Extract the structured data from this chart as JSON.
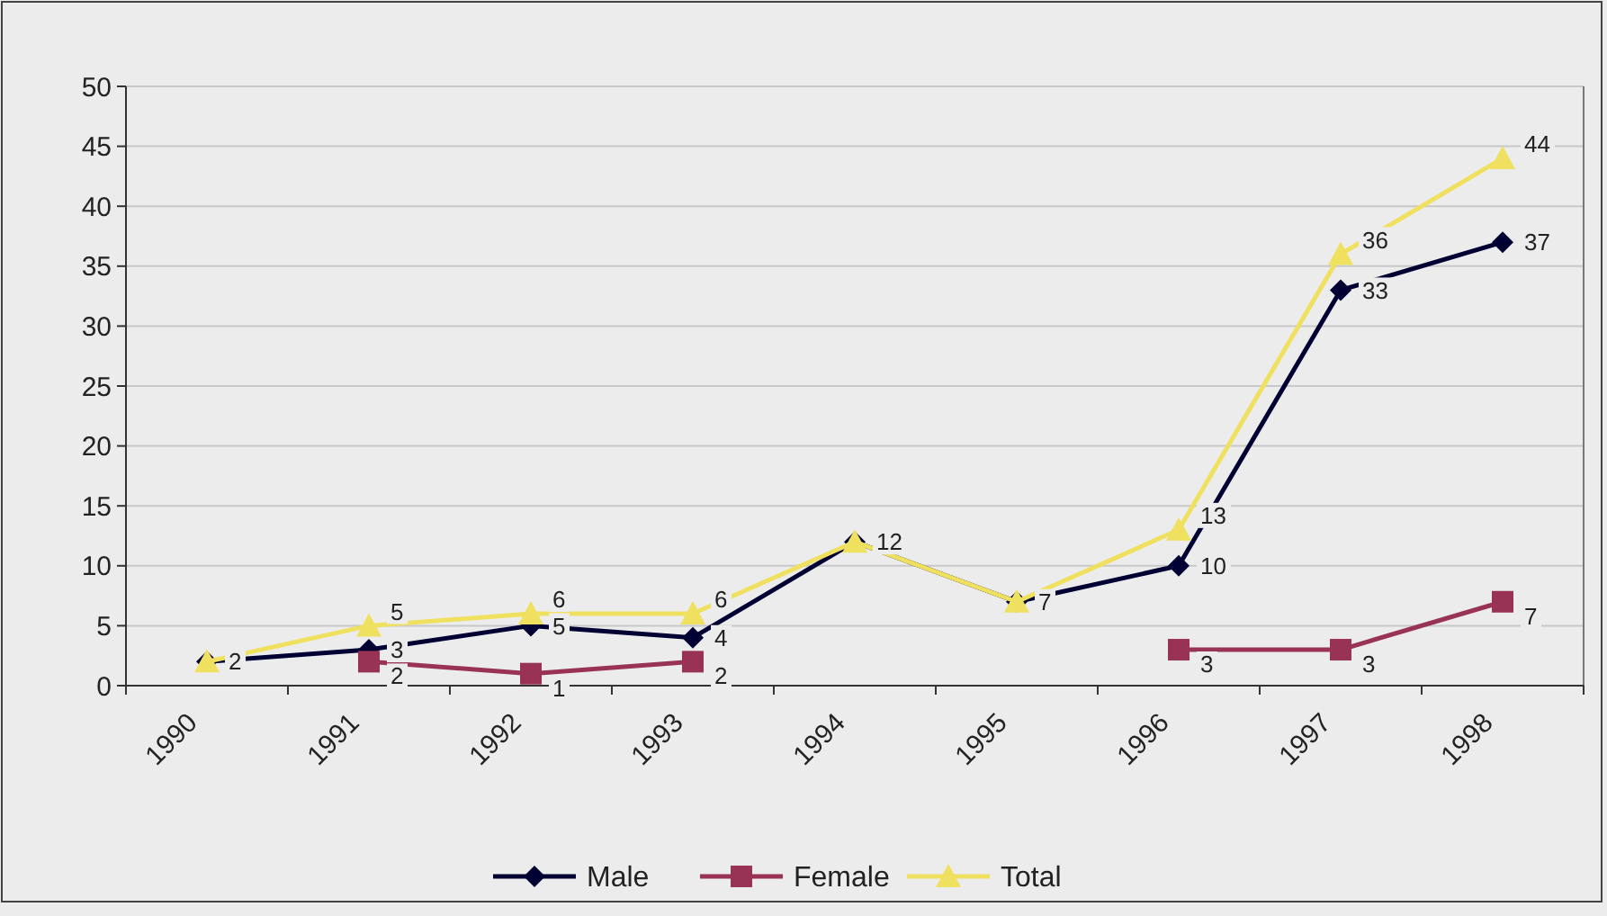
{
  "chart_data": {
    "type": "line",
    "categories": [
      "1990",
      "1991",
      "1992",
      "1993",
      "1994",
      "1995",
      "1996",
      "1997",
      "1998"
    ],
    "series": [
      {
        "name": "Male",
        "color": "#000033",
        "marker": "diamond",
        "values": [
          2,
          3,
          5,
          4,
          12,
          7,
          10,
          33,
          37
        ],
        "value_labels": [
          "2",
          "3",
          "5",
          "4",
          "12",
          "7",
          "10",
          "33",
          "37"
        ]
      },
      {
        "name": "Female",
        "color": "#993355",
        "marker": "square",
        "values": [
          null,
          2,
          1,
          2,
          null,
          null,
          3,
          3,
          7
        ],
        "value_labels": [
          null,
          "2",
          "1",
          "2",
          null,
          null,
          "3",
          "3",
          "7"
        ]
      },
      {
        "name": "Total",
        "color": "#f0e060",
        "marker": "triangle",
        "values": [
          2,
          5,
          6,
          6,
          12,
          7,
          13,
          36,
          44
        ],
        "value_labels": [
          null,
          "5",
          "6",
          "6",
          null,
          null,
          "13",
          "36",
          "44"
        ]
      }
    ],
    "ylim": [
      0,
      50
    ],
    "yticks": [
      0,
      5,
      10,
      15,
      20,
      25,
      30,
      35,
      40,
      45,
      50
    ],
    "grid": "y",
    "legend": "bottom"
  }
}
